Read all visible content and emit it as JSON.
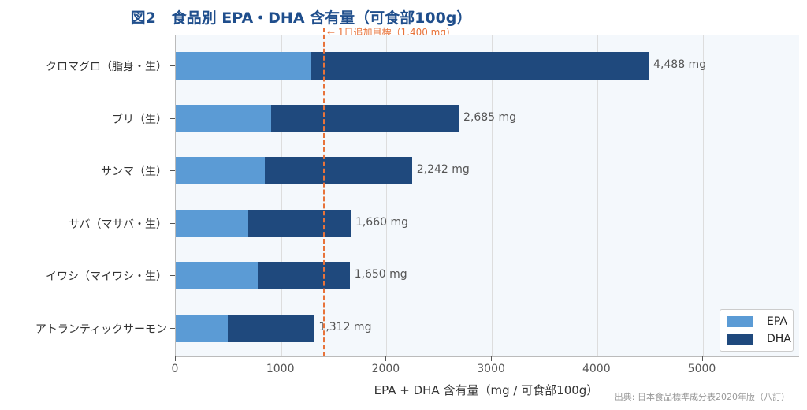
{
  "title": {
    "prefix": "図2",
    "main": "食品別 EPA・DHA 含有量（可食部100g）"
  },
  "target_line": {
    "value": 1400,
    "label": "← 1日追加目標（1,400 mg）",
    "color": "#e8733a"
  },
  "colors": {
    "epa": "#5b9bd5",
    "dha": "#1f497d",
    "plot_bg": "#f4f8fc"
  },
  "source": "出典: 日本食品標準成分表2020年版（八訂）",
  "chart_data": {
    "type": "bar",
    "orientation": "horizontal",
    "stacked": true,
    "title": "図2 食品別 EPA・DHA 含有量（可食部100g）",
    "xlabel": "EPA + DHA 含有量（mg / 可食部100g）",
    "ylabel": "",
    "xlim": [
      0,
      5900
    ],
    "xticks": [
      0,
      1000,
      2000,
      3000,
      4000,
      5000
    ],
    "grid": "vertical",
    "legend_position": "lower right",
    "categories": [
      "クロマグロ（脂身・生）",
      "ブリ（生）",
      "サンマ（生）",
      "サバ（マサバ・生）",
      "イワシ（マイワシ・生）",
      "アトランティックサーモン"
    ],
    "series": [
      {
        "name": "EPA",
        "color": "#5b9bd5",
        "values": [
          1288,
          905,
          845,
          690,
          780,
          494
        ]
      },
      {
        "name": "DHA",
        "color": "#1f497d",
        "values": [
          3200,
          1780,
          1397,
          970,
          870,
          818
        ]
      }
    ],
    "totals": [
      4488,
      2685,
      2242,
      1660,
      1650,
      1312
    ],
    "total_labels": [
      "4,488 mg",
      "2,685 mg",
      "2,242 mg",
      "1,660 mg",
      "1,650 mg",
      "1,312 mg"
    ],
    "annotations": [
      {
        "type": "vline",
        "x": 1400,
        "style": "dashed",
        "label": "← 1日追加目標（1,400 mg）"
      }
    ]
  },
  "legend": [
    {
      "label": "EPA",
      "color": "#5b9bd5"
    },
    {
      "label": "DHA",
      "color": "#1f497d"
    }
  ]
}
